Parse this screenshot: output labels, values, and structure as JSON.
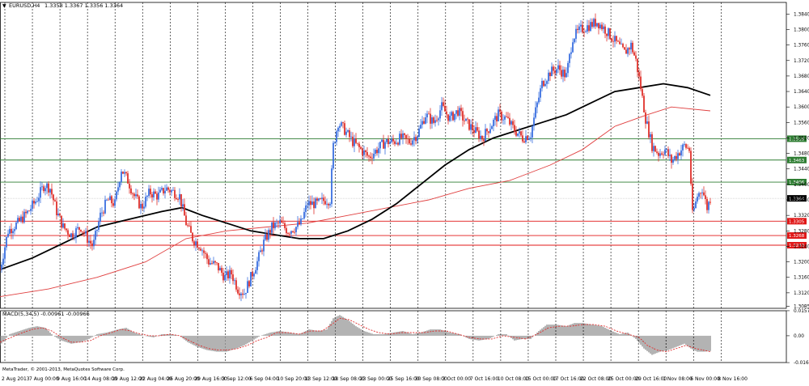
{
  "header": {
    "symbol_timeframe": "EURUSD,H4",
    "ohlc": "1.3358 1.3367 1.3356 1.3364"
  },
  "colors": {
    "bull": "#3a6fe0",
    "bear": "#e0312c",
    "ma_long": "#000000",
    "ma_short": "#e04040",
    "support_line": "#e01818",
    "resistance_line": "#2e7d32",
    "grid": "#000000",
    "macd_hist": "#808080",
    "macd_signal": "#e03030"
  },
  "chart_data": [
    {
      "type": "candlestick",
      "title": "",
      "ylim": [
        1.308,
        1.387
      ],
      "y_ticks": [
        "1.3840",
        "1.3800",
        "1.3760",
        "1.3720",
        "1.3680",
        "1.3640",
        "1.3600",
        "1.3560",
        "1.3520",
        "1.3480",
        "1.3440",
        "1.3400",
        "1.3360",
        "1.3320",
        "1.3280",
        "1.3240",
        "1.3200",
        "1.3160",
        "1.3120",
        "1.3085"
      ],
      "current_price": "1.3364",
      "horizontal_levels": [
        {
          "value": 1.3518,
          "label": "1.3518",
          "kind": "resistance"
        },
        {
          "value": 1.3463,
          "label": "1.3463",
          "kind": "resistance"
        },
        {
          "value": 1.3406,
          "label": "1.3406",
          "kind": "resistance"
        },
        {
          "value": 1.3305,
          "label": "1.3305",
          "kind": "support"
        },
        {
          "value": 1.3268,
          "label": "1.3268",
          "kind": "support"
        },
        {
          "value": 1.3243,
          "label": "1.3243",
          "kind": "support"
        }
      ],
      "x_labels": [
        "2 Aug 2013",
        "7 Aug 00:00",
        "9 Aug 16:00",
        "14 Aug 08:00",
        "19 Aug 12:00",
        "22 Aug 04:00",
        "26 Aug 20:00",
        "29 Aug 16:00",
        "3 Sep 12:00",
        "6 Sep 04:00",
        "10 Sep 20:00",
        "13 Sep 12:00",
        "18 Sep 08:00",
        "23 Sep 00:00",
        "25 Sep 16:00",
        "30 Sep 08:00",
        "3 Oct 00:00",
        "7 Oct 16:00",
        "10 Oct 08:00",
        "15 Oct 00:00",
        "17 Oct 16:00",
        "22 Oct 08:00",
        "25 Oct 00:00",
        "29 Oct 16:00",
        "1 Nov 08:00",
        "6 Nov 00:00",
        "8 Nov 16:00"
      ],
      "price_path": [
        [
          0,
          1.318
        ],
        [
          10,
          1.328
        ],
        [
          22,
          1.33
        ],
        [
          35,
          1.333
        ],
        [
          45,
          1.336
        ],
        [
          55,
          1.34
        ],
        [
          62,
          1.339
        ],
        [
          70,
          1.333
        ],
        [
          78,
          1.329
        ],
        [
          88,
          1.327
        ],
        [
          100,
          1.329
        ],
        [
          108,
          1.326
        ],
        [
          115,
          1.324
        ],
        [
          124,
          1.332
        ],
        [
          133,
          1.336
        ],
        [
          142,
          1.335
        ],
        [
          150,
          1.344
        ],
        [
          158,
          1.341
        ],
        [
          166,
          1.337
        ],
        [
          175,
          1.334
        ],
        [
          185,
          1.338
        ],
        [
          195,
          1.337
        ],
        [
          205,
          1.339
        ],
        [
          215,
          1.338
        ],
        [
          222,
          1.337
        ],
        [
          230,
          1.33
        ],
        [
          238,
          1.326
        ],
        [
          248,
          1.324
        ],
        [
          258,
          1.32
        ],
        [
          268,
          1.319
        ],
        [
          278,
          1.316
        ],
        [
          286,
          1.317
        ],
        [
          294,
          1.313
        ],
        [
          302,
          1.312
        ],
        [
          310,
          1.316
        ],
        [
          318,
          1.32
        ],
        [
          326,
          1.325
        ],
        [
          336,
          1.329
        ],
        [
          346,
          1.33
        ],
        [
          356,
          1.328
        ],
        [
          366,
          1.329
        ],
        [
          372,
          1.33
        ],
        [
          380,
          1.335
        ],
        [
          392,
          1.335
        ],
        [
          402,
          1.336
        ],
        [
          408,
          1.336
        ],
        [
          412,
          1.35
        ],
        [
          418,
          1.356
        ],
        [
          426,
          1.354
        ],
        [
          436,
          1.351
        ],
        [
          446,
          1.349
        ],
        [
          456,
          1.347
        ],
        [
          466,
          1.349
        ],
        [
          476,
          1.351
        ],
        [
          486,
          1.351
        ],
        [
          496,
          1.352
        ],
        [
          506,
          1.351
        ],
        [
          516,
          1.353
        ],
        [
          526,
          1.358
        ],
        [
          536,
          1.356
        ],
        [
          546,
          1.36
        ],
        [
          556,
          1.357
        ],
        [
          566,
          1.359
        ],
        [
          576,
          1.356
        ],
        [
          586,
          1.354
        ],
        [
          596,
          1.352
        ],
        [
          606,
          1.355
        ],
        [
          616,
          1.358
        ],
        [
          626,
          1.357
        ],
        [
          636,
          1.354
        ],
        [
          646,
          1.352
        ],
        [
          656,
          1.353
        ],
        [
          662,
          1.359
        ],
        [
          670,
          1.366
        ],
        [
          680,
          1.369
        ],
        [
          690,
          1.37
        ],
        [
          700,
          1.368
        ],
        [
          708,
          1.378
        ],
        [
          718,
          1.38
        ],
        [
          728,
          1.381
        ],
        [
          738,
          1.382
        ],
        [
          748,
          1.38
        ],
        [
          756,
          1.378
        ],
        [
          764,
          1.376
        ],
        [
          772,
          1.374
        ],
        [
          780,
          1.376
        ],
        [
          786,
          1.372
        ],
        [
          792,
          1.365
        ],
        [
          798,
          1.357
        ],
        [
          806,
          1.35
        ],
        [
          814,
          1.348
        ],
        [
          822,
          1.349
        ],
        [
          830,
          1.346
        ],
        [
          838,
          1.348
        ],
        [
          846,
          1.35
        ],
        [
          852,
          1.349
        ],
        [
          856,
          1.332
        ],
        [
          862,
          1.337
        ],
        [
          868,
          1.339
        ],
        [
          874,
          1.334
        ],
        [
          878,
          1.3364
        ]
      ],
      "ma_long_path": [
        [
          0,
          1.318
        ],
        [
          40,
          1.321
        ],
        [
          80,
          1.325
        ],
        [
          120,
          1.329
        ],
        [
          160,
          1.331
        ],
        [
          200,
          1.333
        ],
        [
          225,
          1.334
        ],
        [
          250,
          1.332
        ],
        [
          280,
          1.33
        ],
        [
          310,
          1.328
        ],
        [
          340,
          1.327
        ],
        [
          370,
          1.326
        ],
        [
          400,
          1.326
        ],
        [
          430,
          1.328
        ],
        [
          460,
          1.331
        ],
        [
          490,
          1.335
        ],
        [
          520,
          1.34
        ],
        [
          550,
          1.345
        ],
        [
          580,
          1.349
        ],
        [
          610,
          1.352
        ],
        [
          640,
          1.354
        ],
        [
          670,
          1.356
        ],
        [
          700,
          1.358
        ],
        [
          730,
          1.361
        ],
        [
          760,
          1.364
        ],
        [
          790,
          1.365
        ],
        [
          820,
          1.366
        ],
        [
          850,
          1.365
        ],
        [
          878,
          1.363
        ]
      ],
      "ma_short_path": [
        [
          0,
          1.311
        ],
        [
          60,
          1.313
        ],
        [
          120,
          1.316
        ],
        [
          180,
          1.32
        ],
        [
          230,
          1.326
        ],
        [
          280,
          1.328
        ],
        [
          330,
          1.329
        ],
        [
          380,
          1.33
        ],
        [
          430,
          1.332
        ],
        [
          480,
          1.334
        ],
        [
          530,
          1.336
        ],
        [
          580,
          1.339
        ],
        [
          630,
          1.341
        ],
        [
          680,
          1.345
        ],
        [
          720,
          1.349
        ],
        [
          760,
          1.355
        ],
        [
          800,
          1.358
        ],
        [
          830,
          1.36
        ],
        [
          878,
          1.359
        ]
      ]
    },
    {
      "type": "histogram",
      "title": "MACD(5,34,5) -0.00961 -0.00966",
      "ylim": [
        -0.0168,
        0.0157
      ],
      "y_ticks": [
        "0.01573",
        "0.00",
        "-0.01684"
      ],
      "histogram_path": [
        [
          0,
          -0.006
        ],
        [
          12,
          0.001
        ],
        [
          24,
          0.003
        ],
        [
          36,
          0.005
        ],
        [
          46,
          0.006
        ],
        [
          56,
          0.005
        ],
        [
          66,
          0.0
        ],
        [
          76,
          -0.003
        ],
        [
          88,
          -0.005
        ],
        [
          100,
          -0.004
        ],
        [
          110,
          -0.002
        ],
        [
          120,
          0.001
        ],
        [
          132,
          0.002
        ],
        [
          146,
          0.004
        ],
        [
          156,
          0.005
        ],
        [
          166,
          0.002
        ],
        [
          178,
          0.0
        ],
        [
          190,
          -0.001
        ],
        [
          200,
          0.001
        ],
        [
          212,
          0.001
        ],
        [
          222,
          0.0
        ],
        [
          232,
          -0.004
        ],
        [
          244,
          -0.007
        ],
        [
          256,
          -0.009
        ],
        [
          268,
          -0.01
        ],
        [
          280,
          -0.01
        ],
        [
          292,
          -0.008
        ],
        [
          302,
          -0.006
        ],
        [
          312,
          -0.003
        ],
        [
          322,
          0.0
        ],
        [
          334,
          0.002
        ],
        [
          346,
          0.003
        ],
        [
          358,
          0.002
        ],
        [
          370,
          0.001
        ],
        [
          382,
          0.004
        ],
        [
          394,
          0.003
        ],
        [
          404,
          0.004
        ],
        [
          412,
          0.011
        ],
        [
          420,
          0.013
        ],
        [
          430,
          0.01
        ],
        [
          440,
          0.006
        ],
        [
          450,
          0.003
        ],
        [
          462,
          0.001
        ],
        [
          474,
          0.001
        ],
        [
          486,
          0.002
        ],
        [
          498,
          0.003
        ],
        [
          510,
          0.001
        ],
        [
          520,
          0.002
        ],
        [
          532,
          0.004
        ],
        [
          544,
          0.004
        ],
        [
          556,
          0.002
        ],
        [
          568,
          0.001
        ],
        [
          580,
          -0.002
        ],
        [
          592,
          -0.003
        ],
        [
          604,
          -0.002
        ],
        [
          616,
          0.001
        ],
        [
          626,
          0.001
        ],
        [
          636,
          -0.003
        ],
        [
          646,
          -0.002
        ],
        [
          656,
          -0.002
        ],
        [
          666,
          0.003
        ],
        [
          676,
          0.007
        ],
        [
          688,
          0.007
        ],
        [
          700,
          0.006
        ],
        [
          710,
          0.008
        ],
        [
          720,
          0.008
        ],
        [
          732,
          0.007
        ],
        [
          744,
          0.006
        ],
        [
          756,
          0.003
        ],
        [
          766,
          0.001
        ],
        [
          776,
          0.002
        ],
        [
          786,
          -0.002
        ],
        [
          796,
          -0.008
        ],
        [
          806,
          -0.012
        ],
        [
          816,
          -0.01
        ],
        [
          826,
          -0.009
        ],
        [
          836,
          -0.007
        ],
        [
          846,
          -0.005
        ],
        [
          854,
          -0.008
        ],
        [
          862,
          -0.01
        ],
        [
          870,
          -0.01
        ],
        [
          878,
          -0.0096
        ]
      ],
      "signal_path": [
        [
          0,
          -0.004
        ],
        [
          14,
          -0.001
        ],
        [
          28,
          0.002
        ],
        [
          40,
          0.004
        ],
        [
          52,
          0.005
        ],
        [
          64,
          0.003
        ],
        [
          76,
          -0.001
        ],
        [
          88,
          -0.004
        ],
        [
          100,
          -0.004
        ],
        [
          112,
          -0.003
        ],
        [
          124,
          0.0
        ],
        [
          138,
          0.002
        ],
        [
          150,
          0.004
        ],
        [
          162,
          0.003
        ],
        [
          174,
          0.001
        ],
        [
          186,
          0.0
        ],
        [
          198,
          0.0
        ],
        [
          210,
          0.001
        ],
        [
          222,
          0.0
        ],
        [
          234,
          -0.003
        ],
        [
          246,
          -0.006
        ],
        [
          258,
          -0.008
        ],
        [
          270,
          -0.009
        ],
        [
          282,
          -0.009
        ],
        [
          294,
          -0.008
        ],
        [
          306,
          -0.006
        ],
        [
          318,
          -0.003
        ],
        [
          330,
          -0.001
        ],
        [
          342,
          0.002
        ],
        [
          356,
          0.002
        ],
        [
          370,
          0.001
        ],
        [
          384,
          0.003
        ],
        [
          398,
          0.003
        ],
        [
          410,
          0.007
        ],
        [
          420,
          0.011
        ],
        [
          432,
          0.01
        ],
        [
          444,
          0.007
        ],
        [
          456,
          0.004
        ],
        [
          468,
          0.002
        ],
        [
          482,
          0.001
        ],
        [
          496,
          0.002
        ],
        [
          510,
          0.002
        ],
        [
          524,
          0.002
        ],
        [
          538,
          0.003
        ],
        [
          552,
          0.003
        ],
        [
          566,
          0.001
        ],
        [
          580,
          -0.001
        ],
        [
          594,
          -0.002
        ],
        [
          608,
          -0.002
        ],
        [
          622,
          0.0
        ],
        [
          636,
          -0.001
        ],
        [
          650,
          -0.002
        ],
        [
          664,
          0.001
        ],
        [
          678,
          0.005
        ],
        [
          692,
          0.006
        ],
        [
          706,
          0.006
        ],
        [
          720,
          0.007
        ],
        [
          734,
          0.007
        ],
        [
          748,
          0.006
        ],
        [
          762,
          0.003
        ],
        [
          776,
          0.001
        ],
        [
          790,
          -0.001
        ],
        [
          800,
          -0.006
        ],
        [
          812,
          -0.009
        ],
        [
          824,
          -0.01
        ],
        [
          836,
          -0.008
        ],
        [
          848,
          -0.006
        ],
        [
          860,
          -0.008
        ],
        [
          878,
          -0.01
        ]
      ]
    }
  ],
  "footer": {
    "copyright": "MetaTrader, © 2001-2013, MetaQuotes Software Corp."
  }
}
